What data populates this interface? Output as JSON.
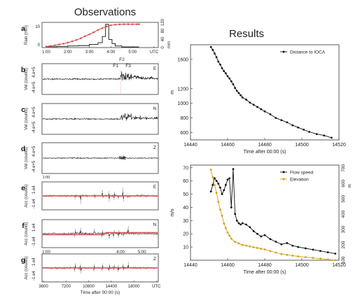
{
  "titles": {
    "left": "Observations",
    "right": "Results"
  },
  "colors": {
    "black": "#111111",
    "red": "#d9534f",
    "gray": "#b0b0b0",
    "gold": "#d4a017"
  },
  "chart_data": [
    {
      "id": "a",
      "type": "line",
      "x_ticks": [
        "1:00",
        "2:00",
        "3:00",
        "4:00",
        "5:00",
        "UTC"
      ],
      "ylabel": "Rain (mm)",
      "y2label": "mm",
      "y_ticks": [
        "0",
        "10"
      ],
      "y2_ticks": [
        "0",
        "40",
        "80",
        "120"
      ],
      "series": [
        {
          "axis": "right",
          "x": [
            1.0,
            1.2,
            1.4,
            1.6,
            1.8,
            2.0,
            2.2,
            2.4,
            2.6,
            2.8,
            3.0,
            3.2,
            3.4,
            3.6,
            3.8,
            4.0,
            4.2,
            4.4,
            4.6,
            4.8,
            5.0,
            5.2,
            5.3
          ],
          "values": [
            5,
            8,
            11,
            15,
            19,
            24,
            30,
            37,
            45,
            55,
            64,
            74,
            85,
            94,
            102,
            108,
            111,
            112,
            113,
            113,
            113,
            113,
            113
          ]
        },
        {
          "axis": "left",
          "type": "step",
          "x": [
            1.0,
            1.5,
            2.0,
            2.5,
            3.0,
            3.4,
            3.6,
            3.75,
            3.9,
            4.05,
            4.2,
            4.5,
            5.3
          ],
          "values": [
            0.4,
            0.6,
            0.8,
            1.0,
            1.6,
            2.4,
            5.5,
            11.5,
            4.0,
            2.0,
            0.8,
            0.3,
            0.3
          ]
        }
      ],
      "events": []
    },
    {
      "id": "b",
      "type": "line",
      "ylabel": "Vel (counts)",
      "y_ticks": [
        "4.e+5",
        "-4.e+5"
      ],
      "component": "E",
      "events": [
        "F1",
        "F2",
        "F3"
      ]
    },
    {
      "id": "c",
      "type": "line",
      "ylabel": "Vel (counts)",
      "y_ticks": [
        "4.e+5",
        "-4.e+5"
      ],
      "component": "N"
    },
    {
      "id": "d",
      "type": "line",
      "ylabel": "Vel (counts)",
      "y_ticks": [
        "4.e+5",
        "-4.e+5"
      ],
      "component": "Z"
    },
    {
      "id": "e",
      "type": "line",
      "ylabel": "Acc (counts)",
      "y_ticks": [
        "1.e4",
        "-1.e4"
      ],
      "component": "E"
    },
    {
      "id": "f",
      "type": "line",
      "ylabel": "Acc (counts)",
      "y_ticks": [
        "1.e4",
        "-1.e4"
      ],
      "component": "N"
    },
    {
      "id": "g",
      "type": "line",
      "ylabel": "Acc (counts)",
      "y_ticks": [
        "1.e4",
        "-1.e4"
      ],
      "component": "Z",
      "x_ticks": [
        "3600",
        "7200",
        "10800",
        "14400",
        "18000",
        "UTC"
      ],
      "x_ticks2": [
        "1:00",
        "4:00",
        "5:00"
      ],
      "xlabel": "Time after 00:00 (s)"
    },
    {
      "id": "r1",
      "type": "line",
      "xlabel": "Time after 00:00 (s)",
      "ylabel": "m",
      "xlim": [
        14440,
        14520
      ],
      "ylim": [
        500,
        1800
      ],
      "x_ticks": [
        14440,
        14460,
        14480,
        14500,
        14520
      ],
      "y_ticks": [
        600,
        800,
        1000,
        1200,
        1600
      ],
      "legend": [
        "Distance to IOCA"
      ],
      "legend_position": "top-right",
      "series": [
        {
          "name": "Distance to IOCA",
          "color": "#111111",
          "x": [
            14451,
            14452,
            14453,
            14454,
            14455,
            14456,
            14457,
            14458,
            14459,
            14460,
            14461,
            14462,
            14463,
            14464,
            14465,
            14466,
            14467,
            14468,
            14470,
            14472,
            14474,
            14476,
            14478,
            14480,
            14483,
            14486,
            14489,
            14492,
            14495,
            14498,
            14501,
            14504,
            14508,
            14512,
            14516
          ],
          "values": [
            1770,
            1730,
            1680,
            1630,
            1570,
            1530,
            1480,
            1440,
            1410,
            1370,
            1340,
            1300,
            1260,
            1210,
            1170,
            1140,
            1110,
            1080,
            1050,
            1010,
            980,
            950,
            920,
            890,
            850,
            800,
            770,
            740,
            700,
            670,
            640,
            610,
            580,
            560,
            530
          ]
        }
      ]
    },
    {
      "id": "r2",
      "type": "line",
      "xlabel": "Time after 00:00 (s)",
      "ylabel": "m/s",
      "y2label": "m",
      "xlim": [
        14440,
        14520
      ],
      "ylim": [
        0,
        72
      ],
      "y2lim": [
        100,
        720
      ],
      "x_ticks": [
        14440,
        14460,
        14480,
        14500,
        14520
      ],
      "y_ticks": [
        10,
        20,
        30,
        40,
        50,
        60,
        70
      ],
      "y2_ticks": [
        100,
        200,
        300,
        400,
        500,
        600,
        700
      ],
      "legend": [
        "Flow speed",
        "Elevation"
      ],
      "legend_position": "top-right",
      "series": [
        {
          "name": "Flow speed",
          "axis": "left",
          "color": "#111111",
          "x": [
            14451,
            14452,
            14453,
            14454,
            14455,
            14456,
            14457,
            14458,
            14459,
            14460,
            14461,
            14462,
            14463,
            14464,
            14465,
            14466,
            14467,
            14468,
            14470,
            14472,
            14474,
            14476,
            14478,
            14480,
            14483,
            14486,
            14489,
            14492,
            14495,
            14498,
            14502,
            14506,
            14510,
            14514,
            14518
          ],
          "values": [
            52,
            57,
            62,
            60,
            58,
            55,
            50,
            53,
            57,
            61,
            62,
            40,
            69,
            35,
            30,
            28,
            27,
            28,
            27,
            25,
            22,
            20,
            18,
            19,
            16,
            14,
            12,
            13,
            11,
            10,
            9,
            8,
            7,
            6,
            5
          ]
        },
        {
          "name": "Elevation",
          "axis": "right",
          "color": "#d4a017",
          "x": [
            14451,
            14452,
            14453,
            14454,
            14455,
            14456,
            14457,
            14458,
            14459,
            14460,
            14461,
            14462,
            14464,
            14466,
            14468,
            14470,
            14472,
            14474,
            14476,
            14478,
            14480,
            14483,
            14486,
            14489,
            14492,
            14495,
            14498,
            14502,
            14506,
            14510,
            14514,
            14518
          ],
          "values": [
            690,
            640,
            590,
            540,
            480,
            430,
            390,
            340,
            310,
            280,
            260,
            240,
            220,
            210,
            200,
            195,
            190,
            185,
            180,
            175,
            170,
            160,
            150,
            140,
            135,
            130,
            125,
            120,
            115,
            110,
            105,
            100
          ]
        }
      ]
    }
  ]
}
